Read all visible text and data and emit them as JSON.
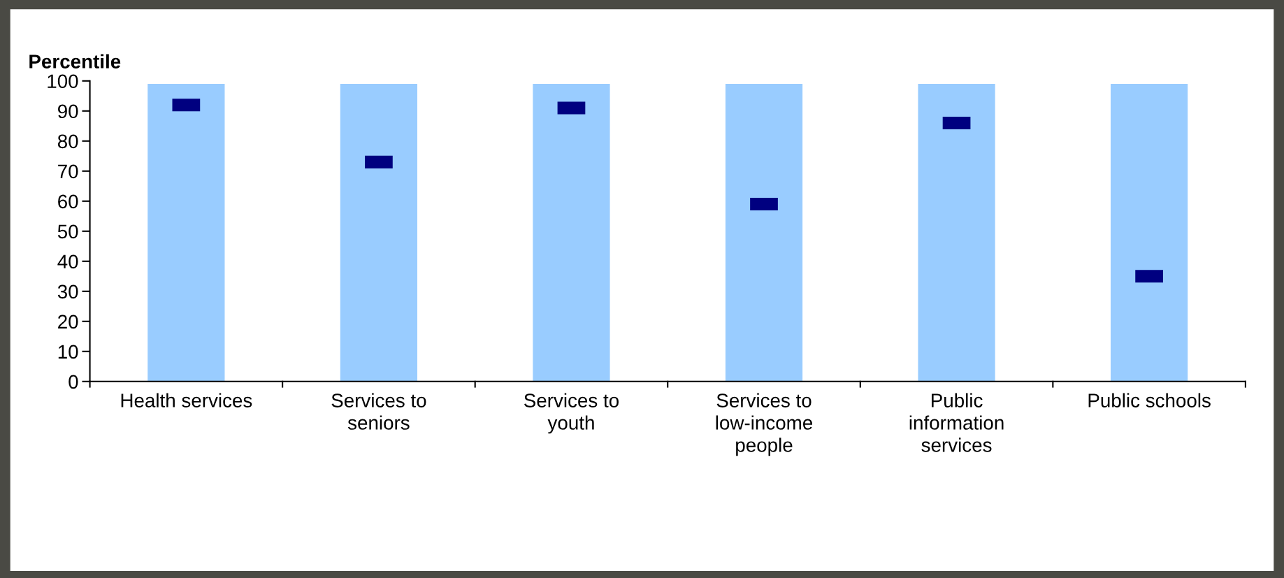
{
  "chart_data": {
    "type": "bar",
    "ylabel": "Percentile",
    "categories": [
      "Health services",
      "Services to\nseniors",
      "Services to\nyouth",
      "Services to\nlow-income\npeople",
      "Public\ninformation\nservices",
      "Public schools"
    ],
    "series": [
      {
        "color": "#99ccff",
        "values": [
          99,
          99,
          99,
          99,
          99,
          99
        ]
      },
      {
        "type": "scatter",
        "marker": "square",
        "color": "#000080",
        "values": [
          92,
          73,
          91,
          59,
          86,
          35
        ]
      }
    ],
    "ylim": [
      0,
      100
    ],
    "yticks": [
      0,
      10,
      20,
      30,
      40,
      50,
      60,
      70,
      80,
      90,
      100
    ],
    "grid": false
  }
}
